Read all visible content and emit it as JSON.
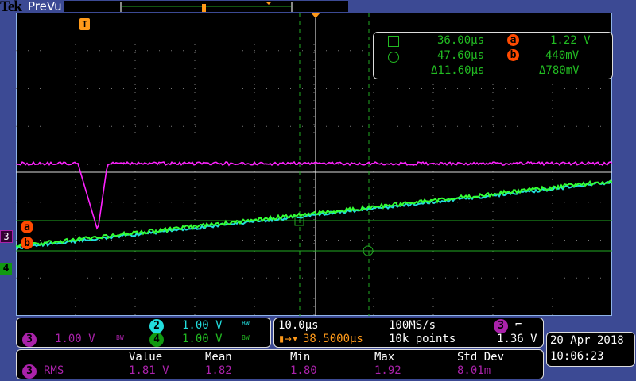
{
  "header": {
    "brand": "Tek",
    "mode": "PreVu"
  },
  "cursor_readout": {
    "time_a": "36.00µs",
    "time_b": "47.60µs",
    "time_delta": "Δ11.60µs",
    "volt_a_label": "a",
    "volt_b_label": "b",
    "volt_a": "1.22 V",
    "volt_b": "440mV",
    "volt_delta": "Δ780mV"
  },
  "channels": [
    {
      "id": "2",
      "scale": "1.00 V",
      "bw": "BW",
      "color": "#22dddd"
    },
    {
      "id": "3",
      "scale": "1.00 V",
      "bw": "BW",
      "color": "#aa22aa"
    },
    {
      "id": "4",
      "scale": "1.00 V",
      "bw": "BW",
      "color": "#22bb22"
    }
  ],
  "timebase": {
    "scale": "10.0µs",
    "sample_rate": "100MS/s",
    "trigger_source": "3",
    "trigger_slope": "falling",
    "trigger_position": "38.5000µs",
    "record_length": "10k points",
    "trigger_level": "1.36 V"
  },
  "datetime": {
    "date": "20 Apr 2018",
    "time": "10:06:23"
  },
  "measurement": {
    "headers": [
      "Value",
      "Mean",
      "Min",
      "Max",
      "Std Dev"
    ],
    "source": "3",
    "name": "RMS",
    "values": [
      "1.81 V",
      "1.82",
      "1.80",
      "1.92",
      "8.01m"
    ]
  },
  "markers": {
    "trigger": "T",
    "ch3": "3",
    "ch4": "4",
    "cursor_a": "a",
    "cursor_b": "b"
  }
}
